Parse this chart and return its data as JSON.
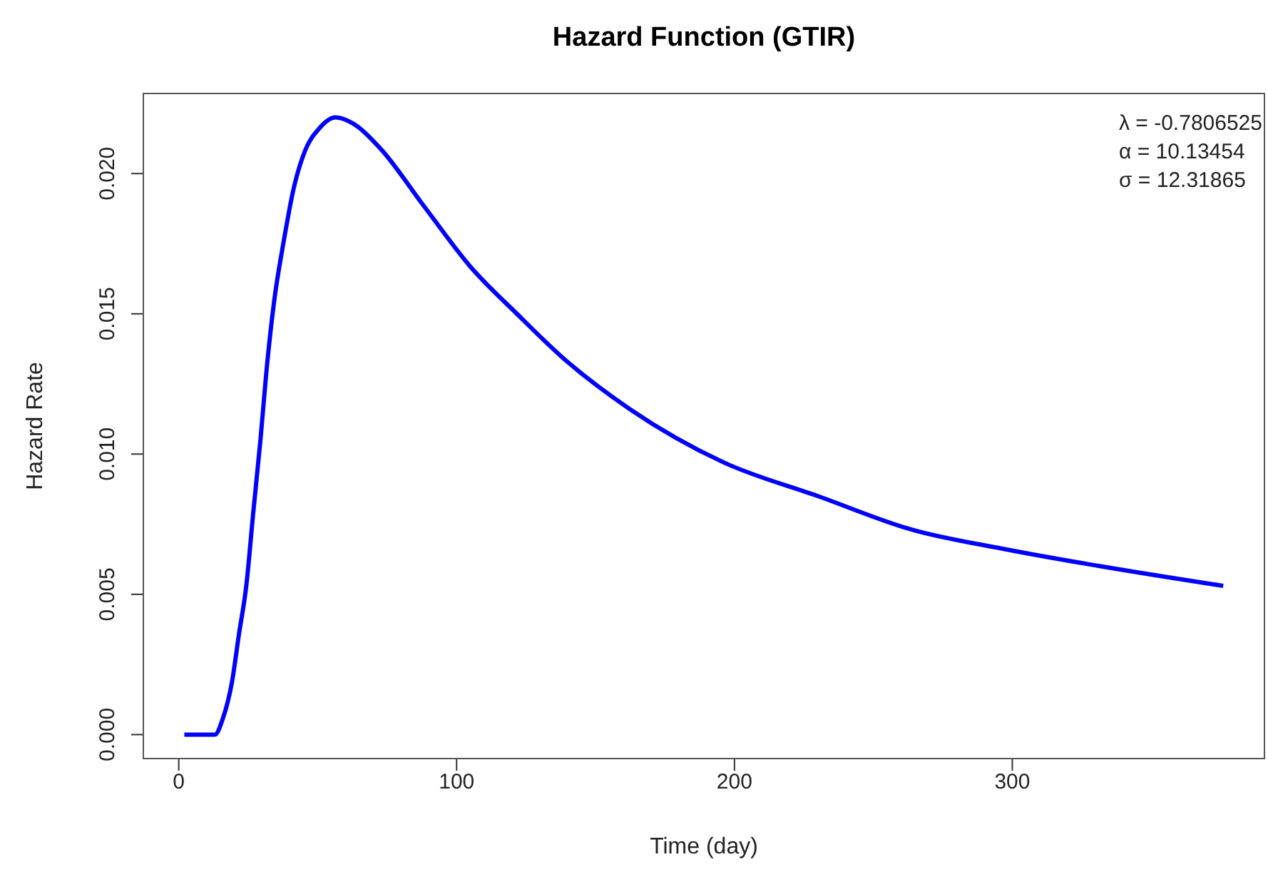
{
  "chart_data": {
    "type": "line",
    "title": "Hazard Function (GTIR)",
    "xlabel": "Time (day)",
    "ylabel": "Hazard Rate",
    "annotations": [
      "λ = -0.7806525",
      "α = 10.13454",
      "σ = 12.31865"
    ],
    "xlim": [
      -13,
      391
    ],
    "xticks": [
      0,
      100,
      200,
      300
    ],
    "ylim": [
      -0.00088,
      0.02288
    ],
    "yticks": [
      {
        "value": 0,
        "label": "0.000"
      },
      {
        "value": 0.005,
        "label": "0.005"
      },
      {
        "value": 0.01,
        "label": "0.010"
      },
      {
        "value": 0.015,
        "label": "0.015"
      },
      {
        "value": 0.02,
        "label": "0.020"
      }
    ],
    "grid": false,
    "legend": false,
    "marker": "none",
    "line_style": "solid",
    "series": [
      {
        "color": "#0000ff",
        "x": [
          2,
          13,
          15.8,
          19.2,
          21.7,
          24.3,
          26.8,
          29.3,
          31.9,
          34.4,
          37.8,
          41.2,
          45.4,
          50.5,
          56.4,
          62.4,
          72.5,
          87.8,
          104.8,
          121.7,
          138.6,
          162.4,
          196.2,
          230.1,
          264,
          297.9,
          331.8,
          375.9
        ],
        "values": [
          0,
          0,
          0.00055,
          0.0019,
          0.0036,
          0.0053,
          0.0079,
          0.0104,
          0.0133,
          0.0155,
          0.0176,
          0.0194,
          0.0208,
          0.0216,
          0.022,
          0.0218,
          0.0209,
          0.0189,
          0.0167,
          0.015,
          0.0134,
          0.0116,
          0.0097,
          0.0085,
          0.0073,
          0.0066,
          0.006,
          0.0053
        ]
      }
    ]
  }
}
